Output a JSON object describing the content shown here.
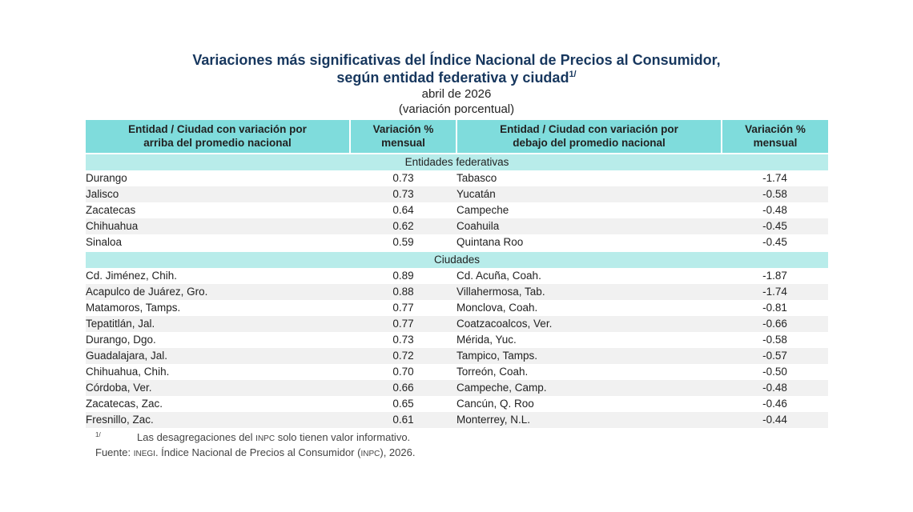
{
  "title": {
    "line1": "Variaciones más significativas del Índice Nacional de Precios al Consumidor,",
    "line2": "según entidad federativa y ciudad",
    "line2_sup": "1/",
    "period": "abril de 2026",
    "unit": "(variación porcentual)"
  },
  "headers": {
    "col1": "Entidad / Ciudad con variación por arriba del promedio nacional",
    "col2": "Variación % mensual",
    "col3": "Entidad / Ciudad con variación por debajo del promedio nacional",
    "col4": "Variación % mensual"
  },
  "sections": [
    {
      "label": "Entidades federativas",
      "rows": [
        {
          "above": "Durango",
          "above_val": "0.73",
          "below": "Tabasco",
          "below_val": "-1.74"
        },
        {
          "above": "Jalisco",
          "above_val": "0.73",
          "below": "Yucatán",
          "below_val": "-0.58"
        },
        {
          "above": "Zacatecas",
          "above_val": "0.64",
          "below": "Campeche",
          "below_val": "-0.48"
        },
        {
          "above": "Chihuahua",
          "above_val": "0.62",
          "below": "Coahuila",
          "below_val": "-0.45"
        },
        {
          "above": "Sinaloa",
          "above_val": "0.59",
          "below": "Quintana Roo",
          "below_val": "-0.45"
        }
      ]
    },
    {
      "label": "Ciudades",
      "rows": [
        {
          "above": "Cd. Jiménez, Chih.",
          "above_val": "0.89",
          "below": "Cd. Acuña, Coah.",
          "below_val": "-1.87"
        },
        {
          "above": "Acapulco de Juárez, Gro.",
          "above_val": "0.88",
          "below": "Villahermosa, Tab.",
          "below_val": "-1.74"
        },
        {
          "above": "Matamoros, Tamps.",
          "above_val": "0.77",
          "below": "Monclova, Coah.",
          "below_val": "-0.81"
        },
        {
          "above": "Tepatitlán, Jal.",
          "above_val": "0.77",
          "below": "Coatzacoalcos, Ver.",
          "below_val": "-0.66"
        },
        {
          "above": "Durango, Dgo.",
          "above_val": "0.73",
          "below": "Mérida, Yuc.",
          "below_val": "-0.58"
        },
        {
          "above": "Guadalajara, Jal.",
          "above_val": "0.72",
          "below": "Tampico, Tamps.",
          "below_val": "-0.57"
        },
        {
          "above": "Chihuahua, Chih.",
          "above_val": "0.70",
          "below": "Torreón, Coah.",
          "below_val": "-0.50"
        },
        {
          "above": "Córdoba, Ver.",
          "above_val": "0.66",
          "below": "Campeche, Camp.",
          "below_val": "-0.48"
        },
        {
          "above": "Zacatecas, Zac.",
          "above_val": "0.65",
          "below": "Cancún, Q. Roo",
          "below_val": "-0.46"
        },
        {
          "above": "Fresnillo, Zac.",
          "above_val": "0.61",
          "below": "Monterrey, N.L.",
          "below_val": "-0.44"
        }
      ]
    }
  ],
  "footnote": {
    "mark": "1/",
    "text_a": "Las desagregaciones del ",
    "text_abbr": "INPC",
    "text_b": " solo tienen valor informativo."
  },
  "source": {
    "label": "Fuente: ",
    "org": "INEGI",
    "text": ". Índice Nacional de Precios al Consumidor (",
    "abbr": "INPC",
    "text_end": "), 2026."
  }
}
